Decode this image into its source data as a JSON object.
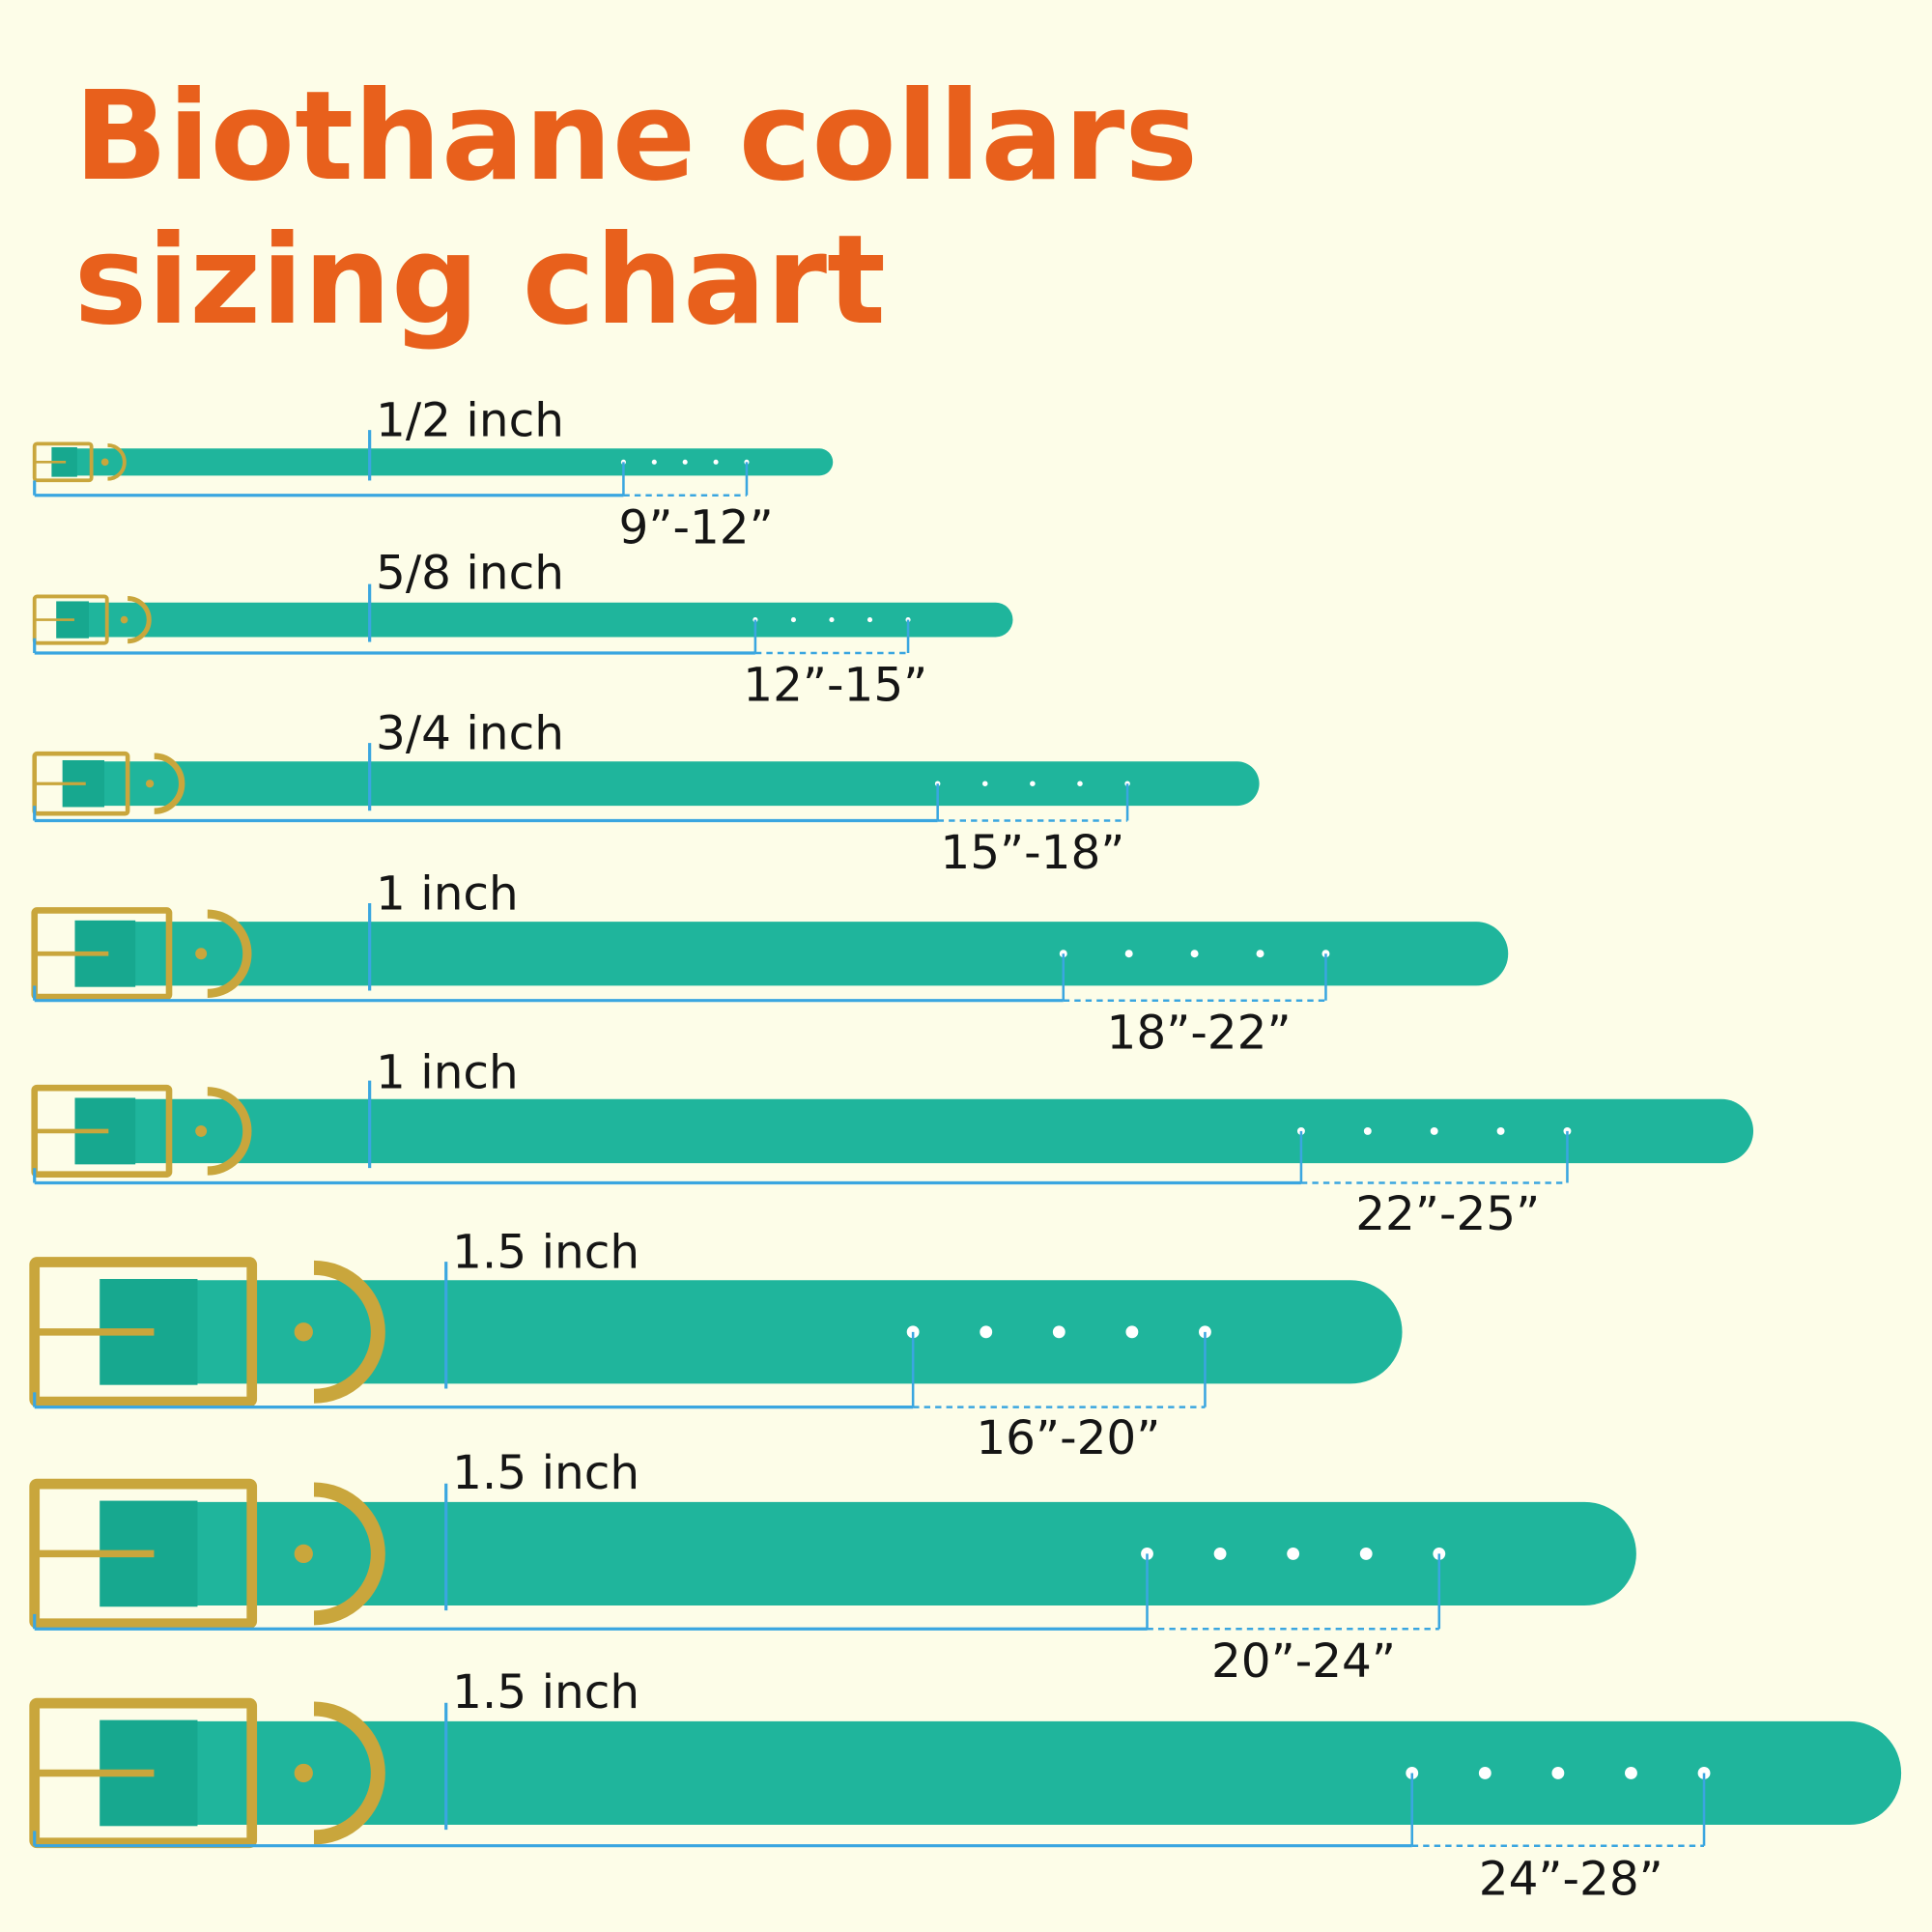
{
  "title": {
    "lines": [
      "Biothane collars",
      "sizing chart"
    ]
  },
  "collars": [
    {
      "width": "1/2 inch",
      "size": "9”-12”"
    },
    {
      "width": "5/8 inch",
      "size": "12”-15”"
    },
    {
      "width": "3/4 inch",
      "size": "15”-18”"
    },
    {
      "width": "1 inch",
      "size": "18”-22”"
    },
    {
      "width": "1 inch",
      "size": "22”-25”"
    },
    {
      "width": "1.5 inch",
      "size": "16”-20”"
    },
    {
      "width": "1.5 inch",
      "size": "20”-24”"
    },
    {
      "width": "1.5 inch",
      "size": "24”-28”"
    }
  ]
}
